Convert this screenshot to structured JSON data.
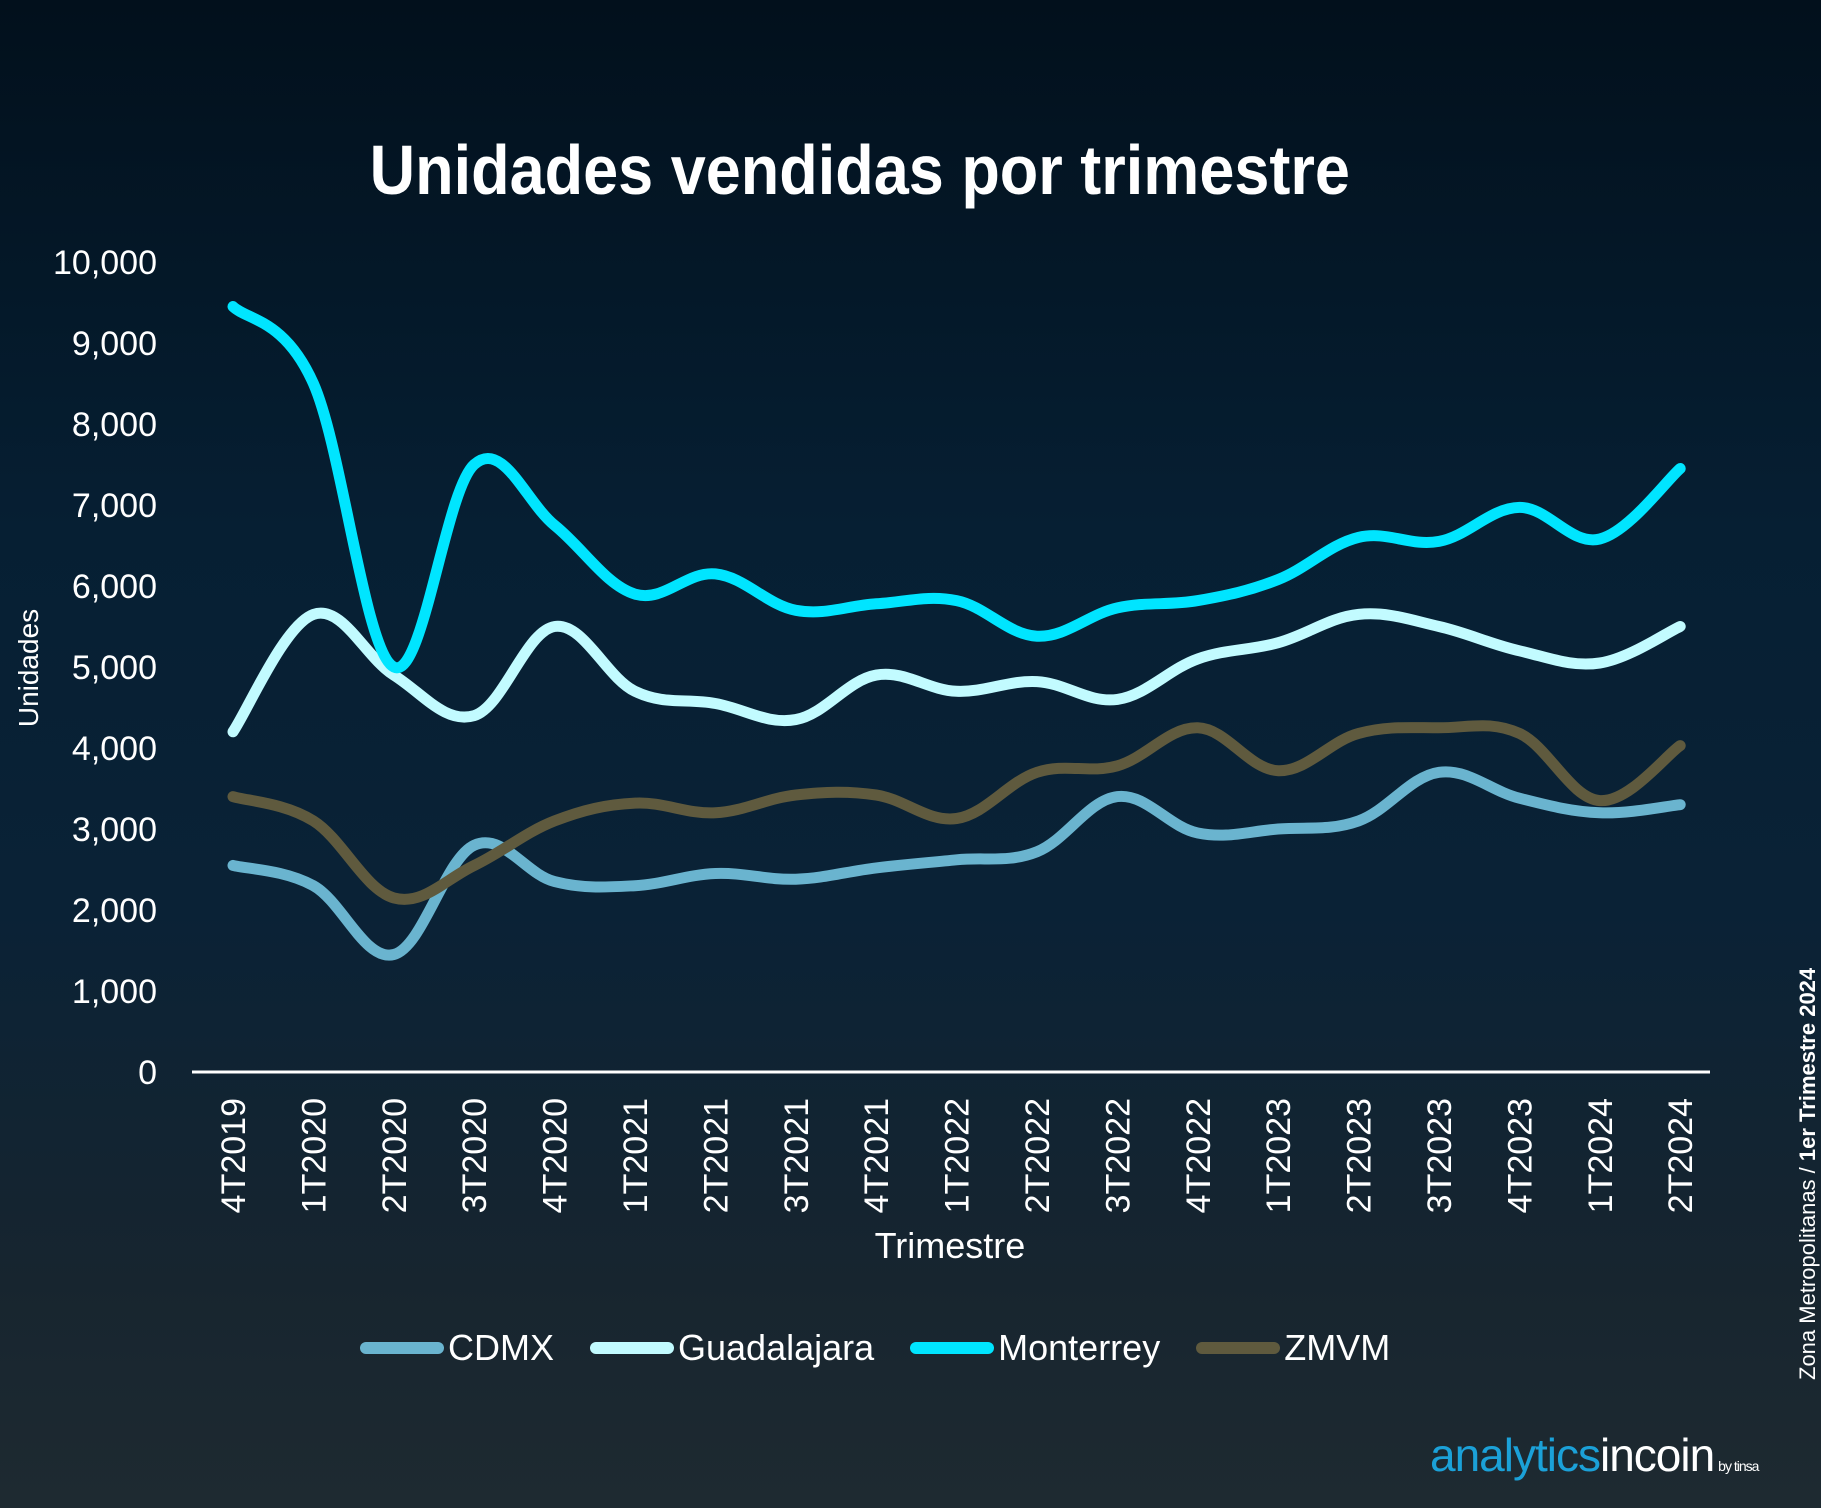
{
  "chart_data": {
    "type": "line",
    "title": "Unidades vendidas por trimestre",
    "xlabel": "Trimestre",
    "ylabel": "Unidades",
    "ylim": [
      0,
      10000
    ],
    "yticks": [
      "0",
      "1,000",
      "2,000",
      "3,000",
      "4,000",
      "5,000",
      "6,000",
      "7,000",
      "8,000",
      "9,000",
      "10,000"
    ],
    "ytick_values": [
      0,
      1000,
      2000,
      3000,
      4000,
      5000,
      6000,
      7000,
      8000,
      9000,
      10000
    ],
    "categories": [
      "4T2019",
      "1T2020",
      "2T2020",
      "3T2020",
      "4T2020",
      "1T2021",
      "2T2021",
      "3T2021",
      "4T2021",
      "1T2022",
      "2T2022",
      "3T2022",
      "4T2022",
      "1T2023",
      "2T2023",
      "3T2023",
      "4T2023",
      "1T2024",
      "2T2024"
    ],
    "grid": false,
    "legend_position": "bottom",
    "series": [
      {
        "name": "CDMX",
        "color": "#6ab4cf",
        "values": [
          2550,
          2300,
          1450,
          2800,
          2350,
          2300,
          2450,
          2380,
          2520,
          2620,
          2720,
          3400,
          2950,
          3000,
          3100,
          3700,
          3380,
          3200,
          3300
        ]
      },
      {
        "name": "Guadalajara",
        "color": "#c2fbff",
        "values": [
          4200,
          5650,
          4900,
          4400,
          5500,
          4700,
          4550,
          4350,
          4900,
          4700,
          4820,
          4600,
          5100,
          5300,
          5650,
          5500,
          5200,
          5050,
          5500
        ]
      },
      {
        "name": "Monterrey",
        "color": "#00e5ff",
        "values": [
          9450,
          8500,
          5000,
          7500,
          6750,
          5900,
          6150,
          5700,
          5780,
          5820,
          5380,
          5730,
          5820,
          6080,
          6600,
          6550,
          6970,
          6580,
          7450
        ]
      },
      {
        "name": "ZMVM",
        "color": "#5f5a3e",
        "values": [
          3400,
          3100,
          2150,
          2550,
          3100,
          3320,
          3200,
          3420,
          3420,
          3130,
          3700,
          3780,
          4250,
          3720,
          4180,
          4250,
          4180,
          3350,
          4030
        ]
      }
    ]
  },
  "side_note": {
    "text": "Zona Metropolitanas",
    "separator": " / ",
    "bold": "1er Trimestre 2024"
  },
  "brand": {
    "part1": "analytics",
    "part2": "incoin",
    "small": "by tinsa"
  }
}
